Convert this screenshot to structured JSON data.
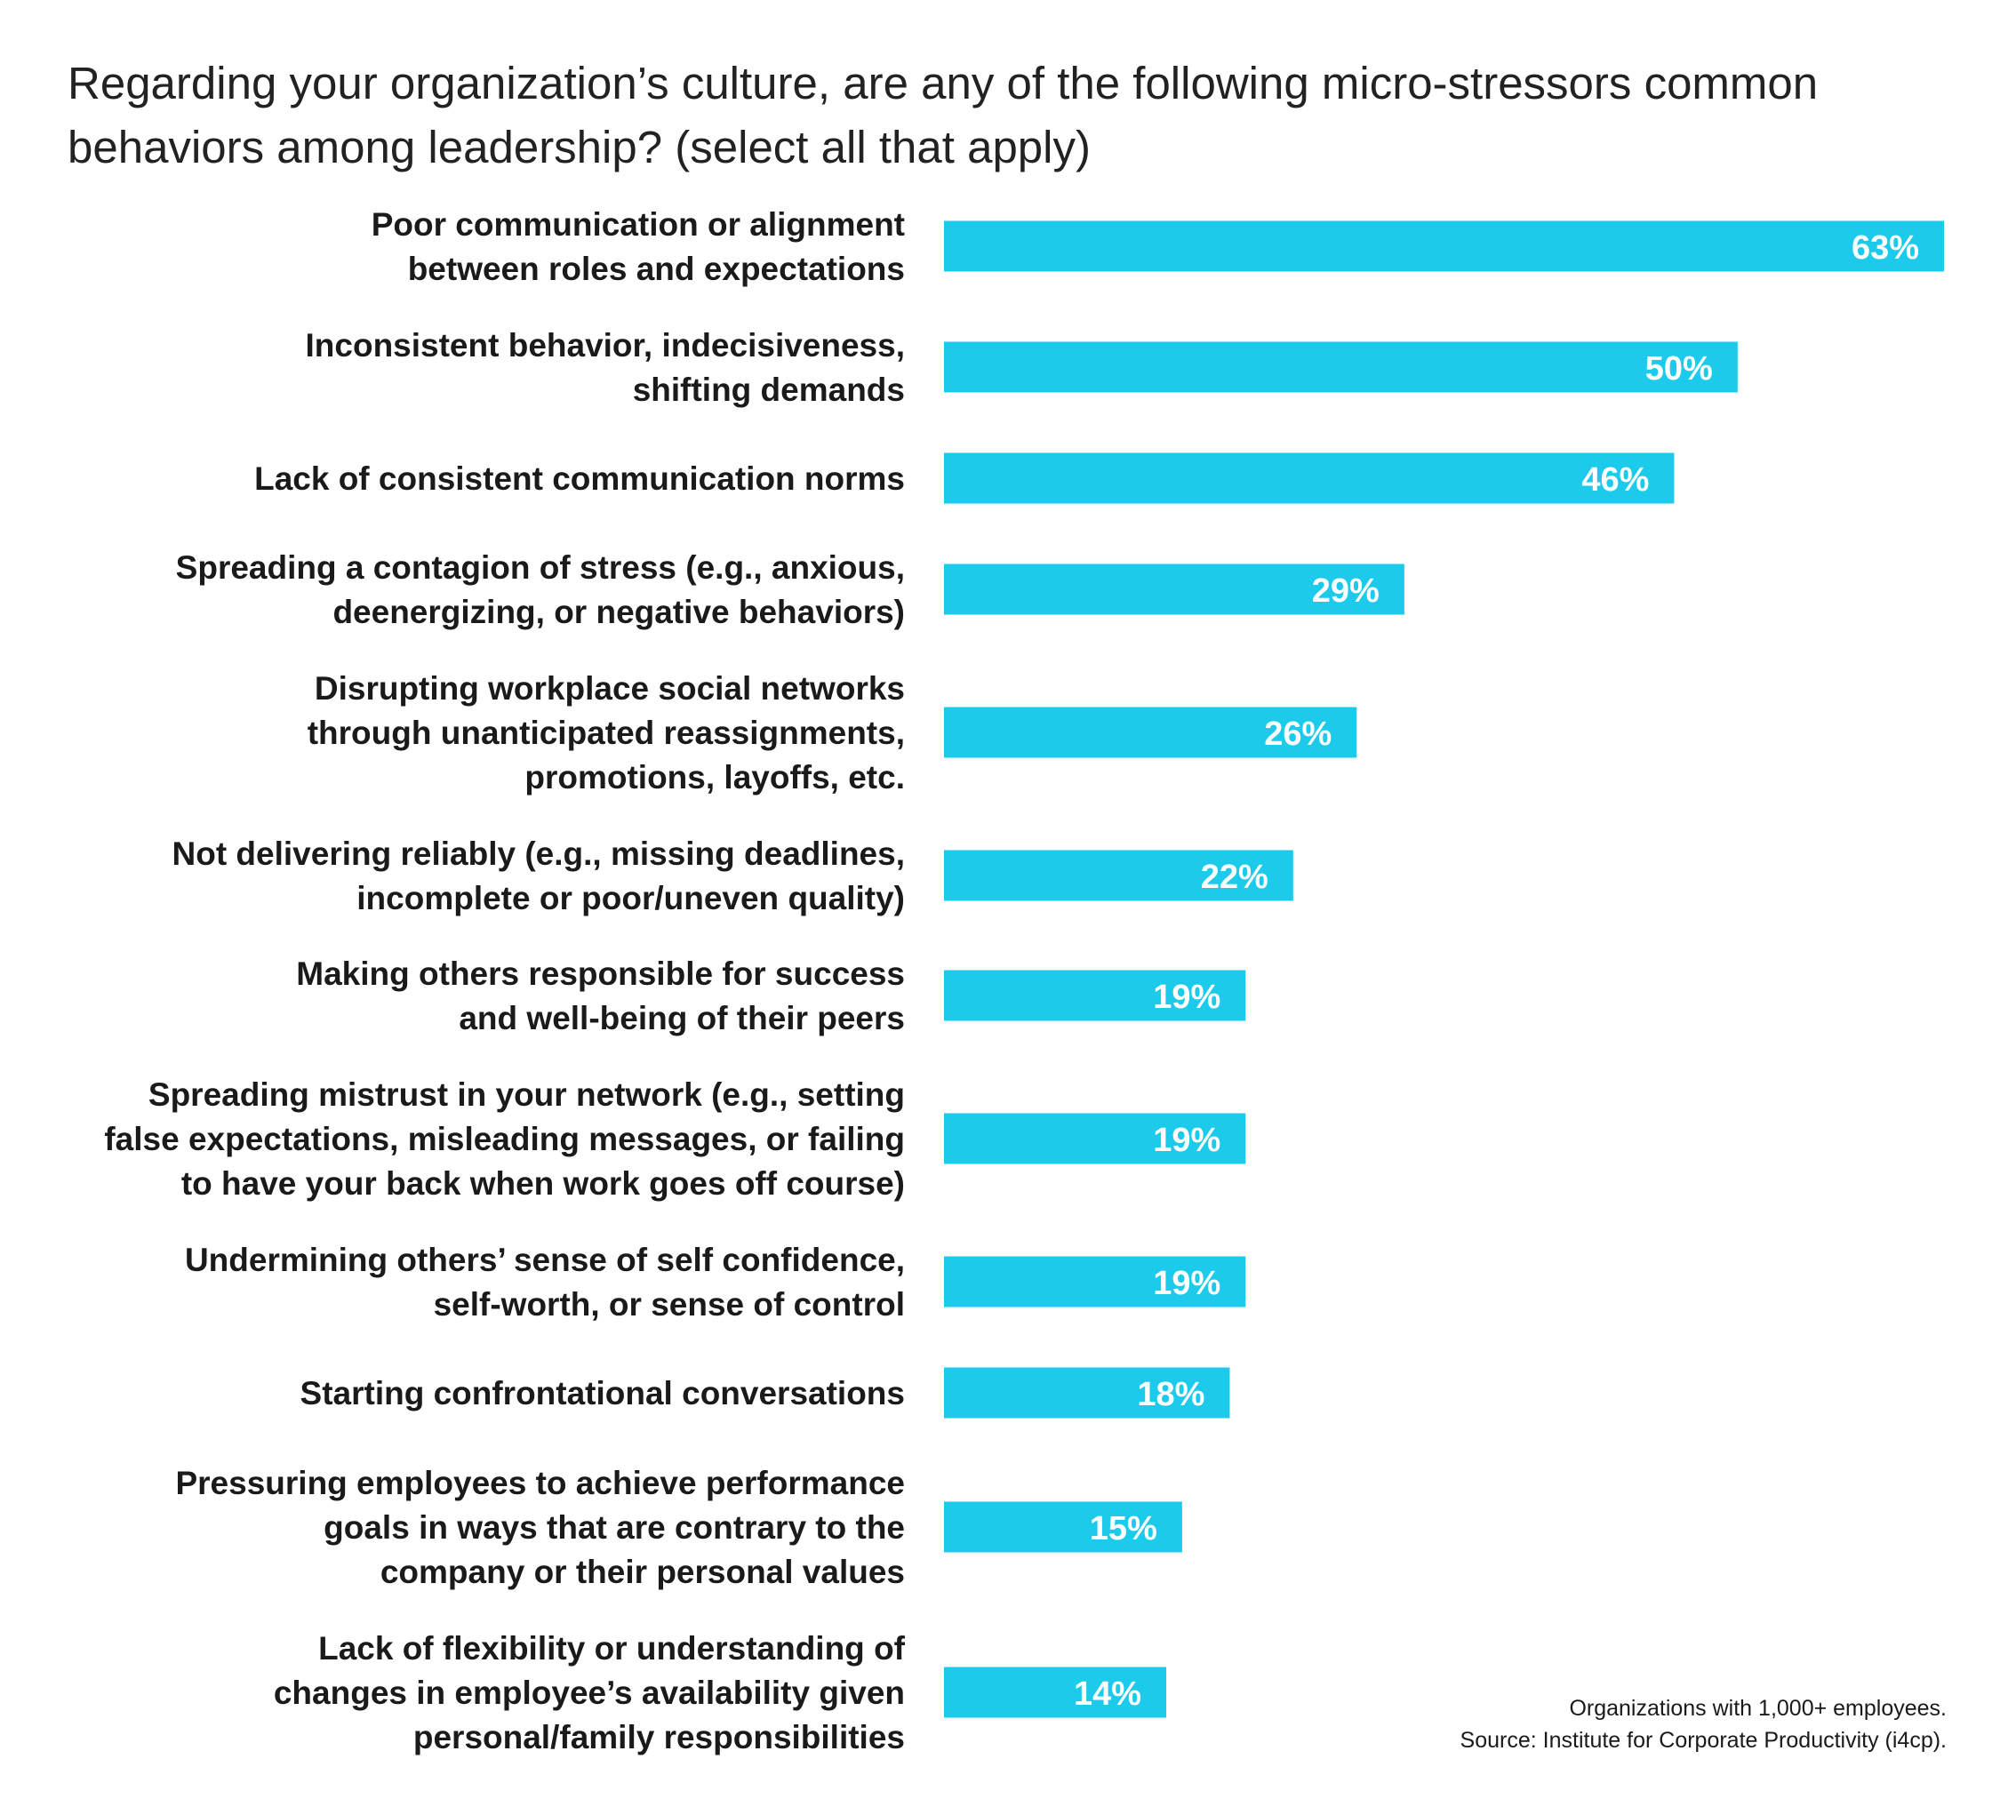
{
  "chart_data": {
    "type": "bar",
    "orientation": "horizontal",
    "title": "Regarding your organization’s culture, are any of the following micro-stressors common behaviors among leadership? (select all that apply)",
    "categories": [
      [
        "Poor communication or alignment",
        "between roles and expectations"
      ],
      [
        "Inconsistent behavior, indecisiveness,",
        "shifting demands"
      ],
      [
        "Lack of consistent communication norms"
      ],
      [
        "Spreading a contagion of stress (e.g., anxious,",
        "deenergizing, or negative behaviors)"
      ],
      [
        "Disrupting workplace social networks",
        "through unanticipated reassignments,",
        "promotions, layoffs, etc."
      ],
      [
        "Not delivering reliably (e.g., missing deadlines,",
        "incomplete or poor/uneven quality)"
      ],
      [
        "Making others responsible for success",
        "and well-being of their peers"
      ],
      [
        "Spreading mistrust in your network (e.g., setting",
        "false expectations, misleading messages, or failing",
        "to have your back when work goes off course)"
      ],
      [
        "Undermining others’ sense of self confidence,",
        "self-worth, or sense of control"
      ],
      [
        "Starting confrontational conversations"
      ],
      [
        "Pressuring employees to achieve performance",
        "goals in ways that are contrary to the",
        "company or their personal values"
      ],
      [
        "Lack of flexibility or understanding of",
        "changes in employee’s availability given",
        "personal/family responsibilities"
      ]
    ],
    "values": [
      63,
      50,
      46,
      29,
      26,
      22,
      19,
      19,
      19,
      18,
      15,
      14
    ],
    "value_labels": [
      "63%",
      "50%",
      "46%",
      "29%",
      "26%",
      "22%",
      "19%",
      "19%",
      "19%",
      "18%",
      "15%",
      "14%"
    ],
    "xlim": [
      0,
      63
    ],
    "bar_color": "#1ccaeb",
    "value_label_color": "#ffffff",
    "grid": false,
    "legend": "none"
  },
  "footnotes": {
    "note": "Organizations with 1,000+ employees.",
    "source": "Source: Institute for Corporate Productivity (i4cp)."
  }
}
